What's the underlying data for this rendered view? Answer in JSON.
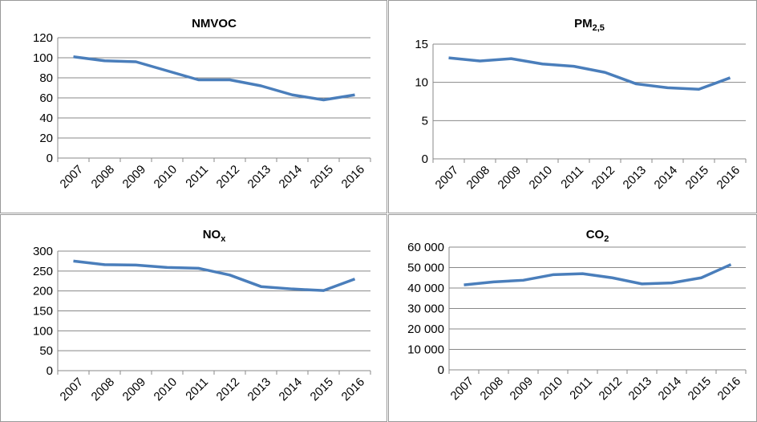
{
  "chart_data": [
    {
      "type": "line",
      "title": "NMVOC",
      "categories": [
        "2007",
        "2008",
        "2009",
        "2010",
        "2011",
        "2012",
        "2013",
        "2014",
        "2015",
        "2016"
      ],
      "values": [
        101,
        97,
        96,
        87,
        78,
        78,
        72,
        63,
        58,
        63
      ],
      "color": "#4a7ebb",
      "ylim": [
        0,
        120
      ],
      "yticks": [
        0,
        20,
        40,
        60,
        80,
        100,
        120
      ],
      "grid": true
    },
    {
      "type": "line",
      "title": "PM",
      "title_subscript": "2,5",
      "categories": [
        "2007",
        "2008",
        "2009",
        "2010",
        "2011",
        "2012",
        "2013",
        "2014",
        "2015",
        "2016"
      ],
      "values": [
        13.2,
        12.8,
        13.1,
        12.4,
        12.1,
        11.3,
        9.8,
        9.3,
        9.1,
        10.6
      ],
      "color": "#4a7ebb",
      "ylim": [
        0,
        15
      ],
      "yticks": [
        0,
        5,
        10,
        15
      ],
      "grid": true
    },
    {
      "type": "line",
      "title": "NO",
      "title_subscript": "x",
      "categories": [
        "2007",
        "2008",
        "2009",
        "2010",
        "2011",
        "2012",
        "2013",
        "2014",
        "2015",
        "2016"
      ],
      "values": [
        275,
        266,
        265,
        259,
        257,
        240,
        211,
        205,
        201,
        230
      ],
      "color": "#4a7ebb",
      "ylim": [
        0,
        300
      ],
      "yticks": [
        0,
        50,
        100,
        150,
        200,
        250,
        300
      ],
      "grid": true
    },
    {
      "type": "line",
      "title": "CO",
      "title_subscript": "2",
      "categories": [
        "2007",
        "2008",
        "2009",
        "2010",
        "2011",
        "2012",
        "2013",
        "2014",
        "2015",
        "2016"
      ],
      "values": [
        41500,
        43000,
        43800,
        46500,
        47000,
        45000,
        42000,
        42500,
        45000,
        51500
      ],
      "color": "#4a7ebb",
      "ylim": [
        0,
        60000
      ],
      "yticks": [
        0,
        {
          "value": 10000,
          "label": "10 000"
        },
        {
          "value": 20000,
          "label": "20 000"
        },
        {
          "value": 30000,
          "label": "30 000"
        },
        {
          "value": 40000,
          "label": "40 000"
        },
        {
          "value": 50000,
          "label": "50 000"
        },
        {
          "value": 60000,
          "label": "60 000"
        }
      ],
      "grid": true
    }
  ]
}
